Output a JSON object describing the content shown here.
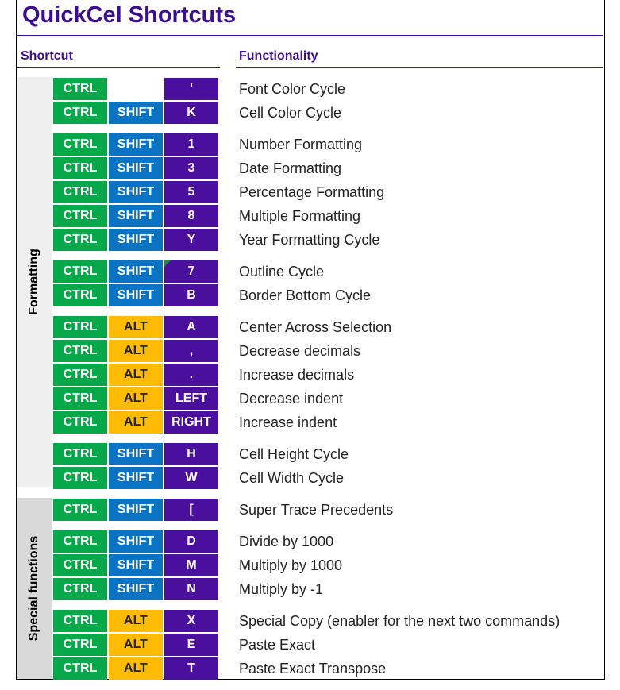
{
  "title": "QuickCel Shortcuts",
  "headers": {
    "shortcut": "Shortcut",
    "functionality": "Functionality"
  },
  "sections": [
    {
      "label": "Formatting"
    },
    {
      "label": "Special functions"
    }
  ],
  "colors": {
    "title": "#3d0e8f",
    "ctrl_key": "#07a84a",
    "shift_key": "#0a73c4",
    "alt_key": "#fdbb03",
    "main_key": "#4a0f9c",
    "section_bg_formatting": "#efefef",
    "section_bg_special": "#d9d9d9"
  },
  "rows": [
    {
      "k1": "CTRL",
      "k2": "",
      "k3": "'",
      "func": "Font Color Cycle"
    },
    {
      "k1": "CTRL",
      "k2": "SHIFT",
      "k3": "K",
      "func": "Cell Color Cycle"
    },
    {
      "k1": "CTRL",
      "k2": "SHIFT",
      "k3": "1",
      "func": "Number Formatting"
    },
    {
      "k1": "CTRL",
      "k2": "SHIFT",
      "k3": "3",
      "func": "Date Formatting"
    },
    {
      "k1": "CTRL",
      "k2": "SHIFT",
      "k3": "5",
      "func": "Percentage Formatting"
    },
    {
      "k1": "CTRL",
      "k2": "SHIFT",
      "k3": "8",
      "func": "Multiple Formatting"
    },
    {
      "k1": "CTRL",
      "k2": "SHIFT",
      "k3": "Y",
      "func": "Year Formatting Cycle"
    },
    {
      "k1": "CTRL",
      "k2": "SHIFT",
      "k3": "7",
      "func": "Outline Cycle"
    },
    {
      "k1": "CTRL",
      "k2": "SHIFT",
      "k3": "B",
      "func": "Border Bottom Cycle"
    },
    {
      "k1": "CTRL",
      "k2": "ALT",
      "k3": "A",
      "func": "Center Across Selection"
    },
    {
      "k1": "CTRL",
      "k2": "ALT",
      "k3": ",",
      "func": "Decrease decimals"
    },
    {
      "k1": "CTRL",
      "k2": "ALT",
      "k3": ".",
      "func": "Increase decimals"
    },
    {
      "k1": "CTRL",
      "k2": "ALT",
      "k3": "LEFT",
      "func": "Decrease indent"
    },
    {
      "k1": "CTRL",
      "k2": "ALT",
      "k3": "RIGHT",
      "func": "Increase indent"
    },
    {
      "k1": "CTRL",
      "k2": "SHIFT",
      "k3": "H",
      "func": "Cell Height Cycle"
    },
    {
      "k1": "CTRL",
      "k2": "SHIFT",
      "k3": "W",
      "func": "Cell Width Cycle"
    },
    {
      "k1": "CTRL",
      "k2": "SHIFT",
      "k3": "[",
      "func": "Super Trace Precedents"
    },
    {
      "k1": "CTRL",
      "k2": "SHIFT",
      "k3": "D",
      "func": "Divide by 1000"
    },
    {
      "k1": "CTRL",
      "k2": "SHIFT",
      "k3": "M",
      "func": "Multiply by 1000"
    },
    {
      "k1": "CTRL",
      "k2": "SHIFT",
      "k3": "N",
      "func": "Multiply by -1"
    },
    {
      "k1": "CTRL",
      "k2": "ALT",
      "k3": "X",
      "func": "Special Copy (enabler for the next two commands)"
    },
    {
      "k1": "CTRL",
      "k2": "ALT",
      "k3": "E",
      "func": "Paste Exact"
    },
    {
      "k1": "CTRL",
      "k2": "ALT",
      "k3": "T",
      "func": "Paste Exact Transpose"
    }
  ]
}
